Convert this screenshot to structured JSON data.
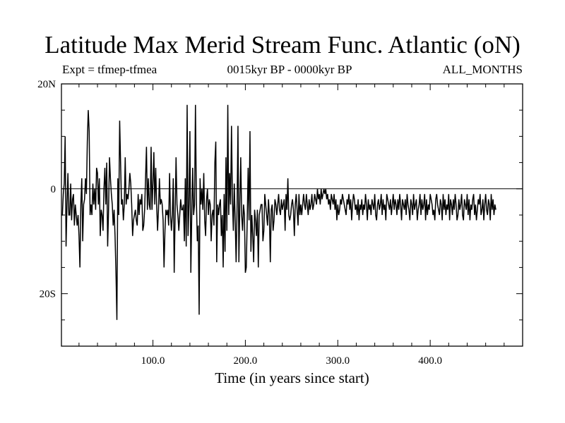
{
  "chart_data": {
    "type": "line",
    "title": "Latitude Max Merid Stream Func. Atlantic (oN)",
    "subtitle_left": "Expt = tfmep-tfmea",
    "subtitle_center": "0015kyr BP - 0000kyr BP",
    "subtitle_right": "ALL_MONTHS",
    "xlabel": "Time (in years since start)",
    "ylabel": "",
    "xlim": [
      1,
      500
    ],
    "ylim": [
      -30,
      20
    ],
    "x_ticks": [
      {
        "value": 100,
        "label": "100.0"
      },
      {
        "value": 200,
        "label": "200.0"
      },
      {
        "value": 300,
        "label": "300.0"
      },
      {
        "value": 400,
        "label": "400.0"
      }
    ],
    "y_ticks": [
      {
        "value": 20,
        "label": "20N"
      },
      {
        "value": 0,
        "label": "0"
      },
      {
        "value": -20,
        "label": "20S"
      }
    ],
    "zero_line": true,
    "grid": false,
    "series": [
      {
        "name": "",
        "x_start": 1,
        "x_step": 1,
        "values": [
          -5,
          -5,
          -1,
          1,
          10,
          -11,
          -3,
          3,
          -5,
          -5,
          1,
          -6,
          -2,
          -1,
          -7,
          -3,
          -5,
          -7,
          -5,
          -9,
          -15,
          -3,
          2,
          -10,
          -3,
          -2,
          2,
          -1,
          9,
          15,
          11,
          -5,
          -3,
          -5,
          1,
          -3,
          0,
          -4,
          4,
          3,
          -3,
          2,
          -9,
          -4,
          -5,
          -8,
          0,
          4,
          -3,
          5,
          -11,
          -4,
          6,
          2,
          -1,
          -3,
          -7,
          -4,
          -9,
          -16,
          -25,
          2,
          -5,
          13,
          5,
          -3,
          -2,
          -6,
          -3,
          6,
          -3,
          -1,
          -2,
          0,
          3,
          1,
          -3,
          -9,
          -6,
          -5,
          -4,
          -6,
          -7,
          -1,
          -5,
          -2,
          -3,
          -1,
          -8,
          -7,
          -4,
          2,
          8,
          -4,
          2,
          -3,
          -4,
          8,
          -4,
          1,
          7,
          -3,
          4,
          -3,
          -8,
          -4,
          2,
          -3,
          -2,
          -3,
          -6,
          -15,
          -8,
          -4,
          -5,
          -4,
          -7,
          3,
          -5,
          -8,
          -5,
          2,
          -16,
          -5,
          6,
          -3,
          -5,
          -8,
          -5,
          -2,
          -4,
          -4,
          -3,
          -10,
          2,
          -11,
          16,
          -9,
          -3,
          11,
          -16,
          -5,
          4,
          -5,
          -3,
          16,
          -2,
          -10,
          -7,
          -24,
          2,
          -3,
          0,
          -4,
          3,
          -6,
          -9,
          -2,
          0,
          -5,
          -2,
          -3,
          -10,
          -5,
          -4,
          -7,
          5,
          9,
          -14,
          -3,
          -5,
          -3,
          -2,
          -9,
          -5,
          -15,
          -1,
          -12,
          6,
          -8,
          16,
          -5,
          3,
          -3,
          12,
          -2,
          -8,
          1,
          -6,
          -14,
          -4,
          12,
          -14,
          -3,
          6,
          -5,
          -8,
          -3,
          -5,
          -16,
          -15,
          -6,
          4,
          -6,
          11,
          -12,
          -5,
          -9,
          -14,
          -4,
          -6,
          -9,
          -4,
          -15,
          -5,
          -4,
          -3,
          -3,
          -10,
          -8,
          -1,
          -3,
          -5,
          -7,
          -2,
          -5,
          -14,
          -4,
          -3,
          -8,
          -6,
          -2,
          -3,
          -5,
          -3,
          -1,
          -4,
          -5,
          -2,
          -4,
          -3,
          -2,
          -8,
          -1,
          -4,
          2,
          -5,
          -6,
          -5,
          -3,
          -2,
          -4,
          -9,
          -3,
          -1,
          -4,
          -7,
          -1,
          -5,
          -3,
          -5,
          -3,
          -1,
          -3,
          -4,
          -1,
          -3,
          -5,
          -2,
          -4,
          -3,
          -1,
          -4,
          -3,
          -1,
          -2,
          -3,
          0,
          -2,
          -1,
          -3,
          0,
          -2,
          -1,
          0,
          -1,
          0,
          -2,
          -1,
          -3,
          -2,
          -4,
          -1,
          -2,
          -3,
          -1,
          -4,
          -2,
          -6,
          -3,
          -5,
          -4,
          -2,
          -3,
          -1,
          -2,
          -3,
          -4,
          -5,
          -2,
          -3,
          -1,
          -4,
          -2,
          -6,
          -3,
          -1,
          -2,
          -4,
          -3,
          -5,
          -2,
          -6,
          -3,
          -4,
          -2,
          -5,
          -3,
          -4,
          -1,
          -3,
          -6,
          -2,
          -4,
          -3,
          -5,
          -2,
          -3,
          -4,
          -1,
          -5,
          -6,
          -3,
          -2,
          -4,
          -3,
          -1,
          -5,
          -2,
          -4,
          -3,
          -6,
          -1,
          -2,
          -3,
          -4,
          -2,
          -5,
          -3,
          -1,
          -4,
          -2,
          -3,
          -5,
          -2,
          -4,
          -1,
          -3,
          -6,
          -2,
          -3,
          -4,
          -2,
          -5,
          -1,
          -3,
          -4,
          -6,
          -2,
          -3,
          -5,
          -1,
          -4,
          -3,
          -2,
          -6,
          -4,
          -3,
          -1,
          -5,
          -2,
          -4,
          -3,
          -1,
          -6,
          -2,
          -5,
          -3,
          -4,
          -1,
          -2,
          -3,
          -5,
          -4,
          -6,
          -2,
          -1,
          -3,
          -4,
          -5,
          -2,
          -3,
          -6,
          -1,
          -4,
          -2,
          -5,
          -3,
          -4,
          -1,
          -6,
          -2,
          -3,
          -5,
          -2,
          -4,
          -1,
          -3,
          -6,
          -5,
          -2,
          -4,
          -3,
          -1,
          -5,
          -6,
          -2,
          -3,
          -4,
          -1,
          -5,
          -2,
          -6,
          -3,
          -4,
          -2,
          -1,
          -5,
          -3,
          -6,
          -4,
          -2,
          -3,
          -1,
          -5,
          -4,
          -2,
          -6,
          -3,
          -1,
          -4,
          -5,
          -2,
          -3,
          -6,
          -1,
          -4,
          -2,
          -5,
          -3,
          -4
        ]
      }
    ]
  }
}
